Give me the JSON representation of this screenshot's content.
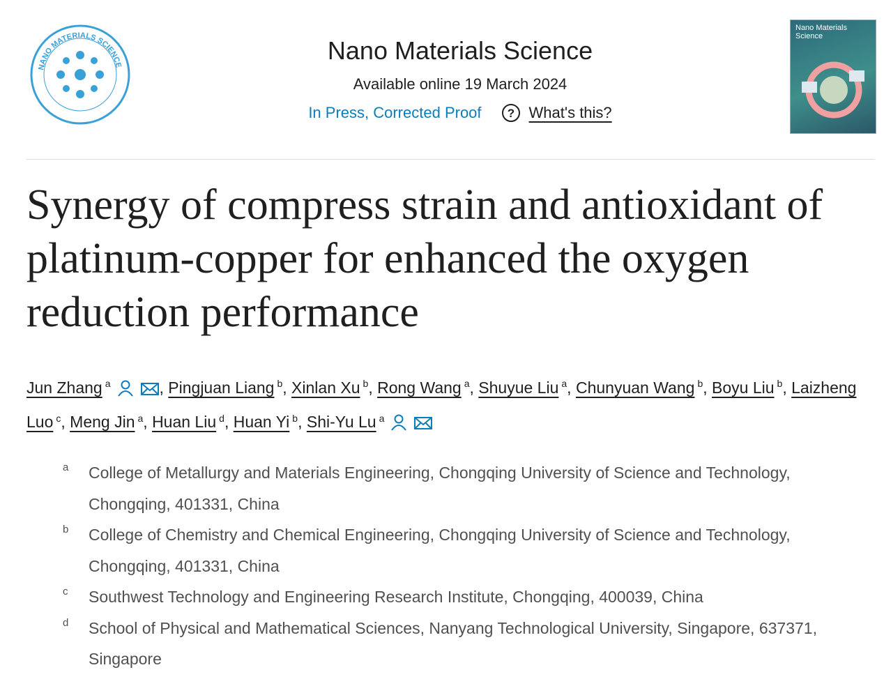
{
  "header": {
    "logo_text": "NANO MATERIALS SCIENCE",
    "journal": "Nano Materials Science",
    "date": "Available online 19 March 2024",
    "status": "In Press, Corrected Proof",
    "help": "What's this?",
    "cover_title": "Nano Materials Science"
  },
  "article": {
    "title": "Synergy of compress strain and antioxidant of platinum-copper for enhanced the oxygen reduction performance",
    "author_separator": ",",
    "authors": [
      {
        "name": "Jun Zhang",
        "aff": "a",
        "corresponding": true
      },
      {
        "name": "Pingjuan Liang",
        "aff": "b"
      },
      {
        "name": "Xinlan Xu",
        "aff": "b"
      },
      {
        "name": "Rong Wang",
        "aff": "a"
      },
      {
        "name": "Shuyue Liu",
        "aff": "a"
      },
      {
        "name": "Chunyuan Wang",
        "aff": "b"
      },
      {
        "name": "Boyu Liu",
        "aff": "b"
      },
      {
        "name": "Laizheng Luo",
        "aff": "c"
      },
      {
        "name": "Meng Jin",
        "aff": "a"
      },
      {
        "name": "Huan Liu",
        "aff": "d"
      },
      {
        "name": "Huan Yi",
        "aff": "b"
      },
      {
        "name": "Shi-Yu Lu",
        "aff": "a",
        "corresponding": true
      }
    ],
    "affiliations": [
      {
        "label": "a",
        "text": "College of Metallurgy and Materials Engineering, Chongqing University of Science and Technology, Chongqing, 401331, China"
      },
      {
        "label": "b",
        "text": "College of Chemistry and Chemical Engineering, Chongqing University of Science and Technology, Chongqing, 401331, China"
      },
      {
        "label": "c",
        "text": "Southwest Technology and Engineering Research Institute, Chongqing, 400039, China"
      },
      {
        "label": "d",
        "text": "School of Physical and Mathematical Sciences, Nanyang Technological University, Singapore, 637371, Singapore"
      }
    ]
  }
}
